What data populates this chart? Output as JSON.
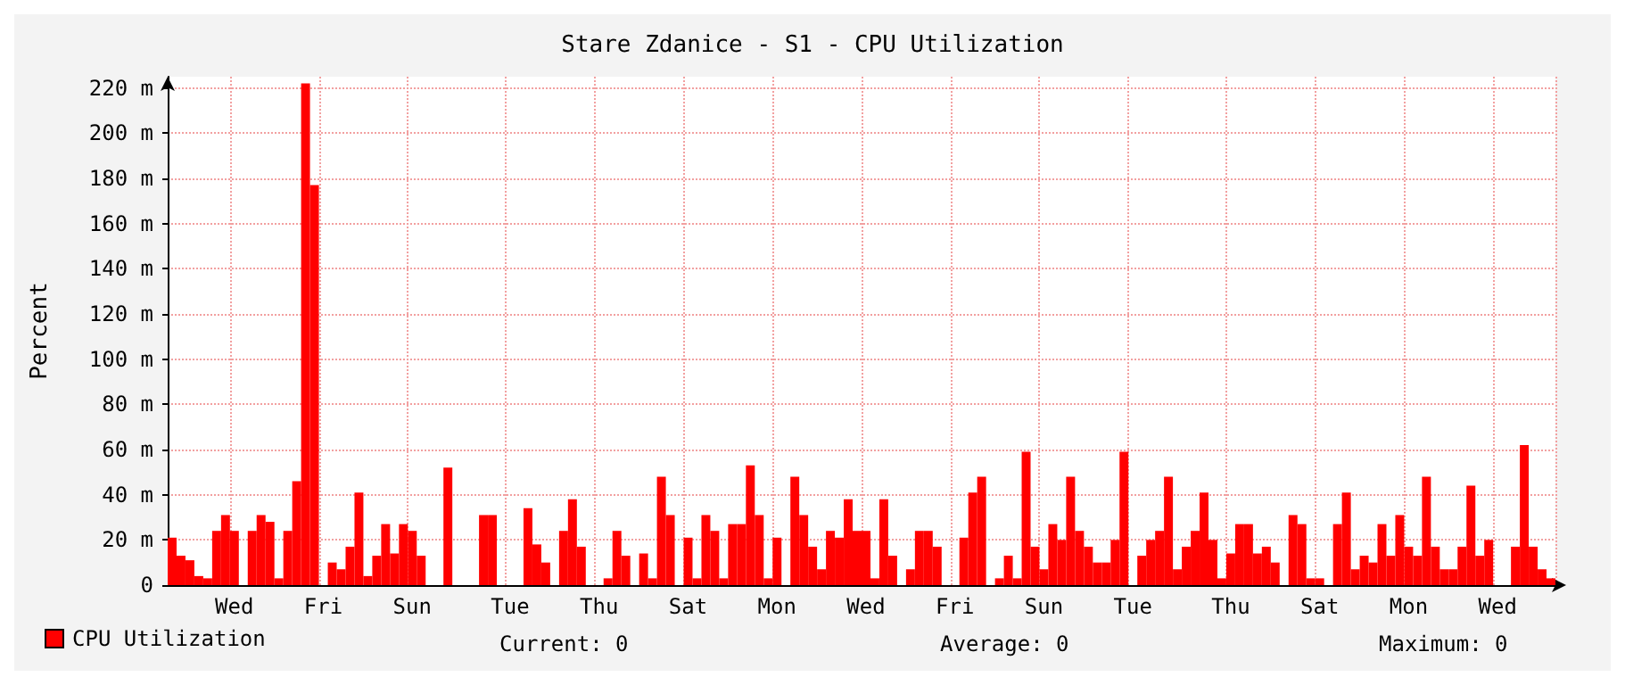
{
  "chart_data": {
    "type": "bar",
    "title": "Stare Zdanice - S1 - CPU Utilization",
    "ylabel": "Percent",
    "categories": [
      null,
      null,
      null,
      null,
      null,
      null,
      null,
      "Wed",
      null,
      null,
      null,
      null,
      null,
      null,
      null,
      null,
      null,
      "Fri",
      null,
      null,
      null,
      null,
      null,
      null,
      null,
      null,
      null,
      "Sun",
      null,
      null,
      null,
      null,
      null,
      null,
      null,
      null,
      null,
      null,
      "Tue",
      null,
      null,
      null,
      null,
      null,
      null,
      null,
      null,
      null,
      "Thu",
      null,
      null,
      null,
      null,
      null,
      null,
      null,
      null,
      null,
      "Sat",
      null,
      null,
      null,
      null,
      null,
      null,
      null,
      null,
      null,
      "Mon",
      null,
      null,
      null,
      null,
      null,
      null,
      null,
      null,
      null,
      "Wed",
      null,
      null,
      null,
      null,
      null,
      null,
      null,
      null,
      null,
      "Fri",
      null,
      null,
      null,
      null,
      null,
      null,
      null,
      null,
      null,
      "Sun",
      null,
      null,
      null,
      null,
      null,
      null,
      null,
      null,
      null,
      "Tue",
      null,
      null,
      null,
      null,
      null,
      null,
      null,
      null,
      null,
      null,
      "Thu",
      null,
      null,
      null,
      null,
      null,
      null,
      null,
      null,
      null,
      "Sat",
      null,
      null,
      null,
      null,
      null,
      null,
      null,
      null,
      null,
      "Mon",
      null,
      null,
      null,
      null,
      null,
      null,
      null,
      null,
      null,
      "Wed",
      null,
      null,
      null,
      null,
      null,
      null
    ],
    "series": [
      {
        "name": "CPU Utilization",
        "color": "#ff0000",
        "values": [
          21,
          13,
          11,
          4,
          3,
          24,
          31,
          24,
          null,
          24,
          31,
          28,
          3,
          24,
          46,
          222,
          177,
          null,
          10,
          7,
          17,
          41,
          4,
          13,
          27,
          14,
          27,
          24,
          13,
          null,
          null,
          52,
          null,
          null,
          null,
          31,
          31,
          null,
          null,
          null,
          34,
          18,
          10,
          null,
          24,
          38,
          17,
          null,
          null,
          3,
          24,
          13,
          null,
          14,
          3,
          48,
          31,
          null,
          21,
          3,
          31,
          24,
          3,
          27,
          27,
          53,
          31,
          3,
          21,
          null,
          48,
          31,
          17,
          7,
          24,
          21,
          38,
          24,
          24,
          3,
          38,
          13,
          null,
          7,
          24,
          24,
          17,
          null,
          null,
          21,
          41,
          48,
          null,
          3,
          13,
          3,
          59,
          17,
          7,
          27,
          20,
          48,
          24,
          17,
          10,
          10,
          20,
          59,
          null,
          13,
          20,
          24,
          48,
          7,
          17,
          24,
          41,
          20,
          3,
          14,
          27,
          27,
          14,
          17,
          10,
          null,
          31,
          27,
          3,
          3,
          null,
          27,
          41,
          7,
          13,
          10,
          27,
          13,
          31,
          17,
          13,
          48,
          17,
          7,
          7,
          17,
          44,
          13,
          20,
          null,
          null,
          17,
          62,
          17,
          7,
          3
        ]
      }
    ],
    "ylim": [
      0,
      225
    ],
    "yticks": [
      0,
      {
        "value": 20,
        "label": "20 m"
      },
      {
        "value": 40,
        "label": "40 m"
      },
      {
        "value": 60,
        "label": "60 m"
      },
      {
        "value": 80,
        "label": "80 m"
      },
      {
        "value": 100,
        "label": "100 m"
      },
      {
        "value": 120,
        "label": "120 m"
      },
      {
        "value": 140,
        "label": "140 m"
      },
      {
        "value": 160,
        "label": "160 m"
      },
      {
        "value": 180,
        "label": "180 m"
      },
      {
        "value": 200,
        "label": "200 m"
      },
      {
        "value": 220,
        "label": "220 m"
      }
    ],
    "grid": true,
    "legend": "bottom left",
    "annotations": [
      "Current: 0",
      "Average: 0",
      "Maximum: 0"
    ]
  }
}
